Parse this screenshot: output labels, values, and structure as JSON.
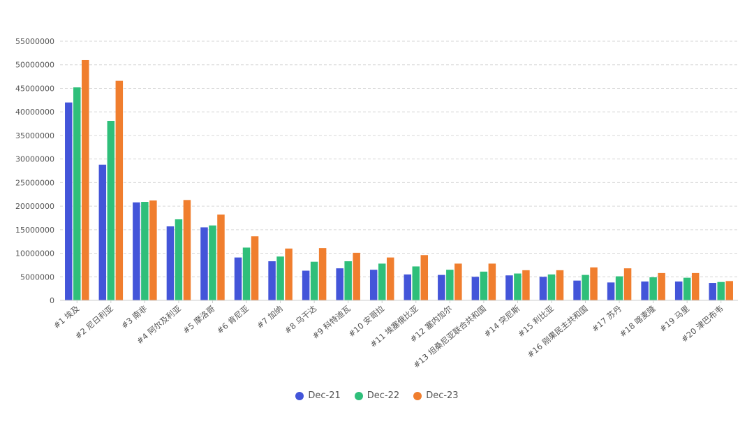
{
  "chart_data": {
    "type": "bar",
    "title": "",
    "xlabel": "",
    "ylabel": "",
    "ylim": [
      0,
      55000000
    ],
    "yticks": [
      0,
      5000000,
      10000000,
      15000000,
      20000000,
      25000000,
      30000000,
      35000000,
      40000000,
      45000000,
      50000000,
      55000000
    ],
    "grid": true,
    "legend_position": "bottom",
    "categories": [
      "#1 埃及",
      "#2 尼日利亚",
      "#3 南非",
      "#4 阿尔及利亚",
      "#5 摩洛哥",
      "#6 肯尼亚",
      "#7 加纳",
      "#8 乌干达",
      "#9 科特迪瓦",
      "#10 安哥拉",
      "#11 埃塞俄比亚",
      "#12 塞内加尔",
      "#13 坦桑尼亚联合共和国",
      "#14 突尼斯",
      "#15 利比亚",
      "#16 刚果民主共和国",
      "#17 苏丹",
      "#18 喀麦隆",
      "#19 马里",
      "#20 津巴布韦"
    ],
    "series": [
      {
        "name": "Dec-21",
        "color": "#4355d9",
        "values": [
          42000000,
          28800000,
          20800000,
          15700000,
          15500000,
          9100000,
          8300000,
          6300000,
          6800000,
          6500000,
          5500000,
          5400000,
          5000000,
          5300000,
          5000000,
          4200000,
          3800000,
          4000000,
          4000000,
          3700000
        ]
      },
      {
        "name": "Dec-22",
        "color": "#2fbf7a",
        "values": [
          45200000,
          38100000,
          20900000,
          17200000,
          15900000,
          11200000,
          9300000,
          8200000,
          8300000,
          7800000,
          7200000,
          6500000,
          6100000,
          5700000,
          5500000,
          5400000,
          5100000,
          4900000,
          4800000,
          3900000
        ]
      },
      {
        "name": "Dec-23",
        "color": "#f07e2e",
        "values": [
          51000000,
          46600000,
          21200000,
          21300000,
          18200000,
          13600000,
          11000000,
          11100000,
          10100000,
          9100000,
          9600000,
          7800000,
          7800000,
          6400000,
          6400000,
          7000000,
          6800000,
          5800000,
          5800000,
          4100000
        ]
      }
    ]
  }
}
